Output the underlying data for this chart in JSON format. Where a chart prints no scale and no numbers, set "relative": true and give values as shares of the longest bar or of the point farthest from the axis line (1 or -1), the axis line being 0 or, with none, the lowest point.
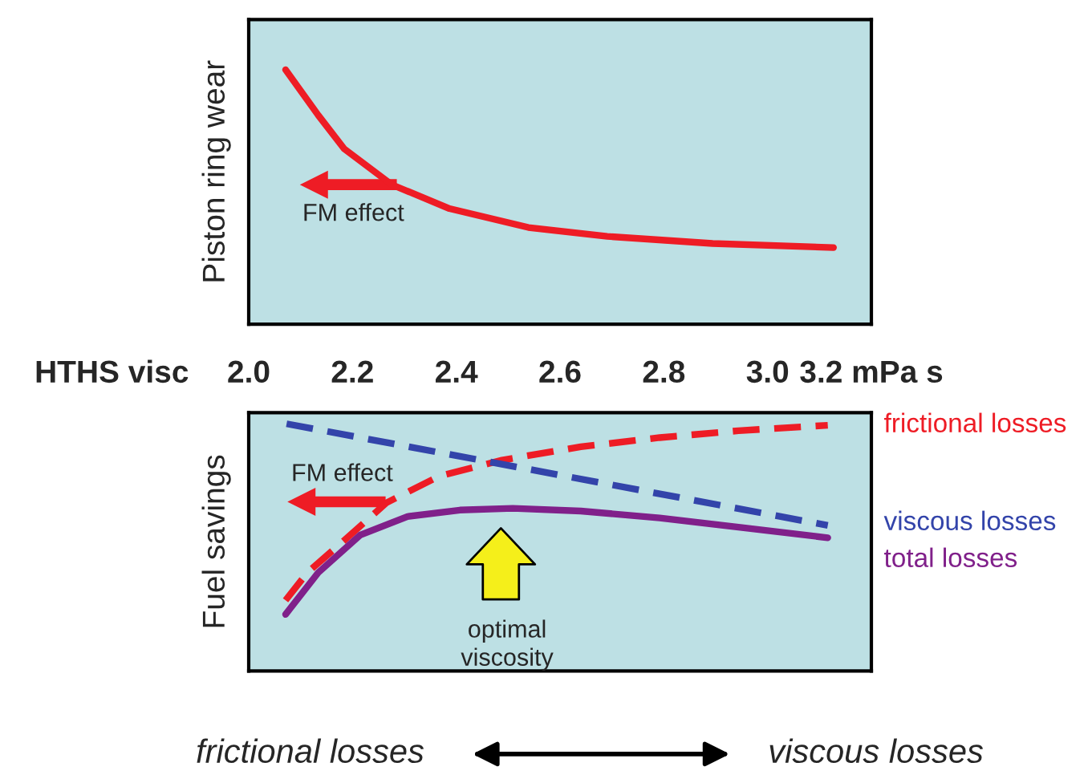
{
  "chart_data": [
    {
      "type": "line",
      "relative": true,
      "ylabel": "Piston ring wear",
      "xlabel": "HTHS visc",
      "xlim": [
        2.0,
        3.2
      ],
      "xticks": [
        {
          "value": 2.0,
          "label": "2.0"
        },
        2.2,
        2.4,
        2.6,
        2.8,
        {
          "value": 3.0,
          "label": "3.0"
        },
        {
          "value": 3.2,
          "label": "3.2 mPa s"
        }
      ],
      "tick_labels": "x",
      "grid": false,
      "legend": false,
      "series": [
        {
          "color": "#ee1c25",
          "line_style": "solid",
          "x": [
            2.071,
            2.134,
            2.184,
            2.276,
            2.387,
            2.539,
            2.691,
            2.894,
            3.127
          ],
          "values": [
            1.0,
            0.821,
            0.689,
            0.548,
            0.454,
            0.38,
            0.345,
            0.317,
            0.301
          ]
        }
      ],
      "annotations": [
        "FM effect"
      ]
    },
    {
      "type": "line",
      "relative": true,
      "ylabel": "Fuel savings",
      "xlim": [
        2.0,
        3.2
      ],
      "tick_labels": false,
      "grid": false,
      "legend": false,
      "series": [
        {
          "name": "frictional losses",
          "color": "#ee1c25",
          "line_style": "dashed",
          "x": [
            2.071,
            2.113,
            2.184,
            2.265,
            2.367,
            2.488,
            2.64,
            2.792,
            2.944,
            3.116
          ],
          "values": [
            0.286,
            0.398,
            0.528,
            0.68,
            0.788,
            0.853,
            0.907,
            0.944,
            0.972,
            0.994
          ]
        },
        {
          "name": "viscous losses",
          "color": "#3344aa",
          "line_style": "dashed",
          "x": [
            2.073,
            3.116
          ],
          "values": [
            1.0,
            0.589
          ]
        },
        {
          "name": "total losses",
          "color": "#80208a",
          "line_style": "solid",
          "x": [
            2.071,
            2.134,
            2.215,
            2.306,
            2.407,
            2.509,
            2.64,
            2.792,
            2.944,
            3.116
          ],
          "values": [
            0.229,
            0.398,
            0.55,
            0.625,
            0.651,
            0.658,
            0.647,
            0.619,
            0.582,
            0.539
          ]
        }
      ],
      "annotations": [
        "FM effect",
        "optimal\nviscosity",
        "frictional losses",
        "viscous losses"
      ]
    }
  ]
}
